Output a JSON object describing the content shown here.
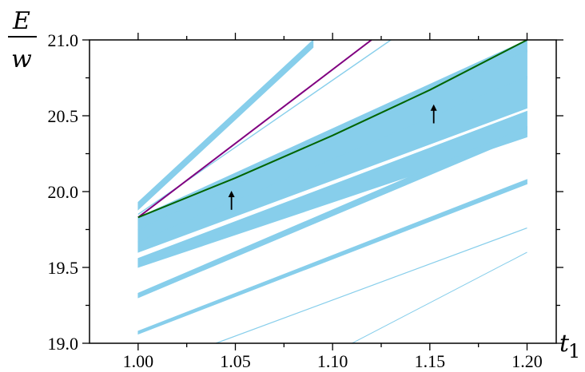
{
  "chart_data": {
    "type": "line",
    "title": "",
    "ylabel_numerator": "E",
    "ylabel_denominator": "w",
    "xlabel": "t",
    "xlabel_subscript": "1",
    "xlim": [
      0.975,
      1.215
    ],
    "ylim": [
      19.0,
      21.0
    ],
    "x_ticks": [
      1.0,
      1.05,
      1.1,
      1.15,
      1.2
    ],
    "x_tick_labels": [
      "1.00",
      "1.05",
      "1.10",
      "1.15",
      "1.20"
    ],
    "y_ticks": [
      19.0,
      19.5,
      20.0,
      20.5,
      21.0
    ],
    "y_tick_labels": [
      "19.0",
      "19.5",
      "20.0",
      "20.5",
      "21.0"
    ],
    "grid": false,
    "colors": {
      "band": "#87ceeb",
      "purple_line": "#800080",
      "green_line": "#006400",
      "axes": "#000000",
      "arrow": "#000000"
    },
    "bands": [
      {
        "x": [
          1.0,
          1.09
        ],
        "lower": [
          19.88,
          20.95
        ],
        "upper": [
          19.93,
          21.0
        ]
      },
      {
        "x": [
          1.0,
          1.2
        ],
        "lower": [
          19.75,
          20.92
        ],
        "upper": [
          19.83,
          21.0
        ]
      },
      {
        "x": [
          1.0,
          1.2
        ],
        "lower": [
          19.67,
          20.74
        ],
        "upper": [
          19.75,
          20.93
        ]
      },
      {
        "x": [
          1.0,
          1.2
        ],
        "lower": [
          19.6,
          20.55
        ],
        "upper": [
          19.67,
          20.76
        ]
      },
      {
        "x": [
          1.0,
          1.2
        ],
        "lower": [
          19.5,
          20.36
        ],
        "upper": [
          19.56,
          20.53
        ]
      },
      {
        "x": [
          1.0,
          1.2
        ],
        "lower": [
          19.3,
          20.38
        ],
        "upper": [
          19.33,
          20.43
        ]
      },
      {
        "x": [
          1.0,
          1.2
        ],
        "lower": [
          19.06,
          20.05
        ],
        "upper": [
          19.08,
          20.08
        ]
      }
    ],
    "thin_lines": [
      {
        "x": [
          1.0,
          1.13
        ],
        "y": [
          19.85,
          21.0
        ],
        "width": 1.4
      },
      {
        "x": [
          1.04,
          1.2
        ],
        "y": [
          19.0,
          19.76
        ],
        "width": 1.2
      },
      {
        "x": [
          1.11,
          1.2
        ],
        "y": [
          19.0,
          19.6
        ],
        "width": 1.0
      }
    ],
    "series": [
      {
        "color": "#800080",
        "x": [
          1.0,
          1.12
        ],
        "y": [
          19.83,
          21.0
        ]
      },
      {
        "color": "#006400",
        "x": [
          1.0,
          1.05,
          1.1,
          1.15,
          1.2
        ],
        "y": [
          19.83,
          20.09,
          20.37,
          20.67,
          21.0
        ]
      }
    ],
    "arrows": [
      {
        "x": 1.048,
        "y_from": 19.88,
        "y_to": 20.0
      },
      {
        "x": 1.152,
        "y_from": 20.45,
        "y_to": 20.57
      }
    ]
  }
}
